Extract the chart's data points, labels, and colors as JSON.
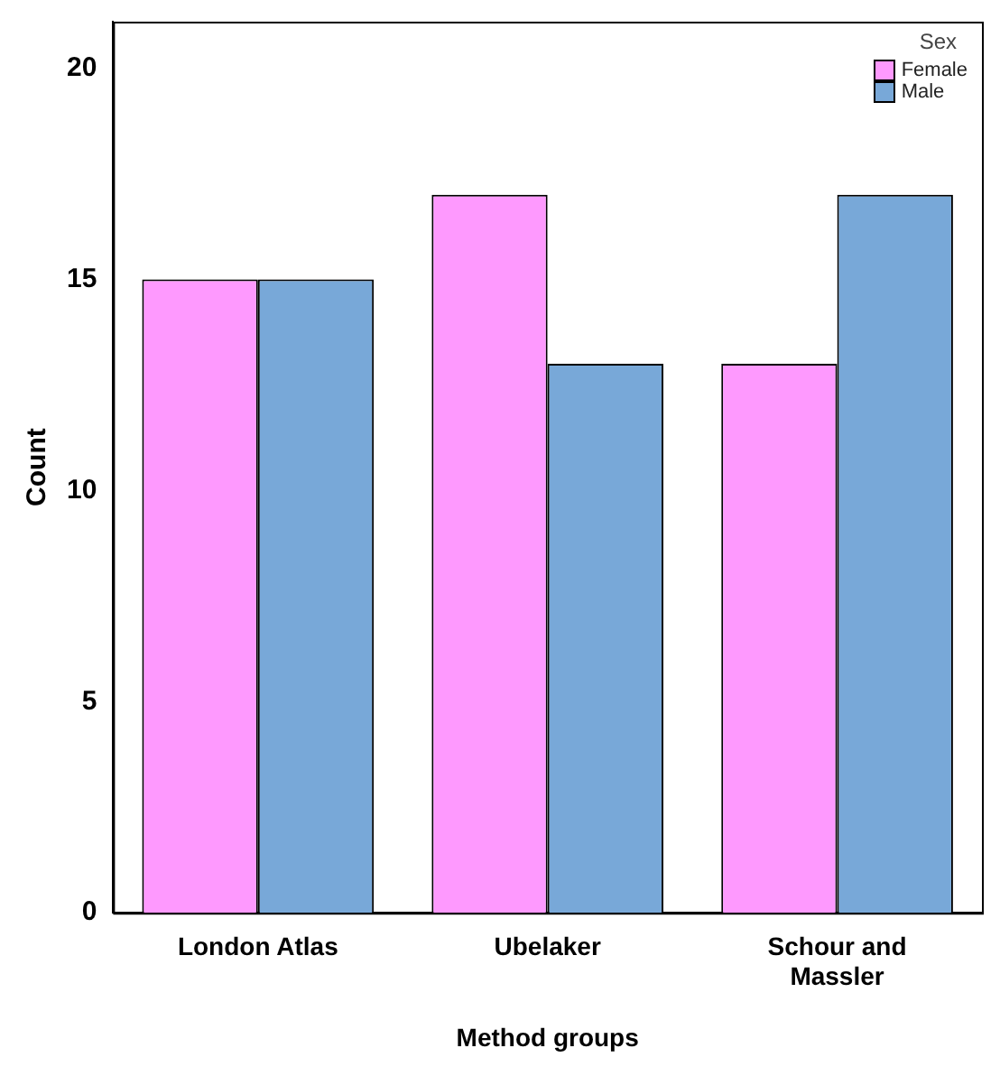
{
  "chart_data": {
    "type": "bar",
    "xlabel": "Method groups",
    "ylabel": "Count",
    "legend_title": "Sex",
    "categories": [
      "London Atlas",
      "Ubelaker",
      "Schour and Massler"
    ],
    "series": [
      {
        "name": "Female",
        "color": "#fe99fe",
        "values": [
          15,
          17,
          13
        ]
      },
      {
        "name": "Male",
        "color": "#78a8d8",
        "values": [
          15,
          13,
          17
        ]
      }
    ],
    "ylim": [
      0,
      21.1
    ],
    "yticks": [
      0,
      5,
      10,
      15,
      20
    ],
    "grid": false,
    "legend": "top right"
  }
}
